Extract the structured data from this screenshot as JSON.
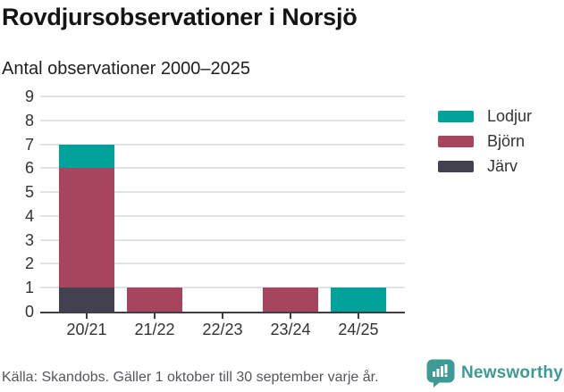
{
  "header": {
    "title": "Rovdjursobservationer i Norsjö",
    "subtitle": "Antal observationer 2000–2025"
  },
  "chart_data": {
    "type": "bar",
    "stacked": true,
    "title": "Rovdjursobservationer i Norsjö",
    "subtitle": "Antal observationer 2000–2025",
    "categories": [
      "20/21",
      "21/22",
      "22/23",
      "23/24",
      "24/25"
    ],
    "series": [
      {
        "name": "Järv",
        "color": "#434050",
        "values": [
          1,
          0,
          0,
          0,
          0
        ]
      },
      {
        "name": "Björn",
        "color": "#a7455f",
        "values": [
          5,
          1,
          0,
          1,
          0
        ]
      },
      {
        "name": "Lodjur",
        "color": "#00a29b",
        "values": [
          1,
          0,
          0,
          0,
          1
        ]
      }
    ],
    "stack_totals": [
      7,
      1,
      0,
      1,
      1
    ],
    "xlabel": "",
    "ylabel": "",
    "ylim": [
      0,
      9
    ],
    "yticks": [
      0,
      1,
      2,
      3,
      4,
      5,
      6,
      7,
      8,
      9
    ],
    "grid": true,
    "legend_position": "right",
    "legend_order": [
      "Lodjur",
      "Björn",
      "Järv"
    ]
  },
  "footer": {
    "source": "Källa: Skandobs. Gäller 1 oktober till 30 september varje år.",
    "brand": "Newsworthy"
  },
  "colors": {
    "lodjur": "#00a29b",
    "bjorn": "#a7455f",
    "jarv": "#434050",
    "grid": "#e4e4e4",
    "axis": "#3f3f3f",
    "brand_teal": "#3e9a94",
    "title_text": "#141414",
    "axis_text": "#333333",
    "source_text": "#55575c"
  }
}
